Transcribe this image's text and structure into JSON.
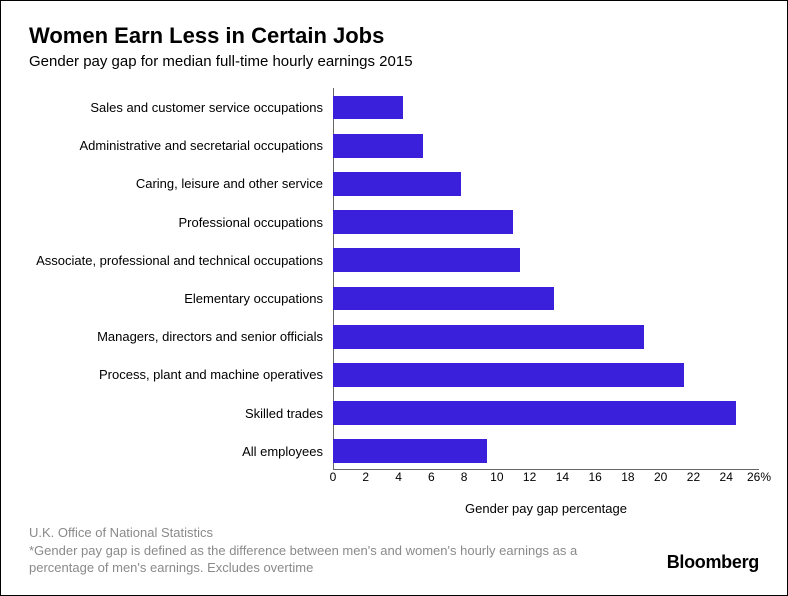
{
  "title": "Women Earn Less in Certain Jobs",
  "subtitle": "Gender pay gap for median full-time hourly earnings 2015",
  "chart": {
    "type": "bar",
    "orientation": "horizontal",
    "bar_color": "#3a1fdb",
    "background_color": "#ffffff",
    "axis_color": "#666666",
    "label_color": "#000000",
    "label_fontsize": 13,
    "tick_fontsize": 12,
    "x_title": "Gender pay gap percentage",
    "x_title_fontsize": 13,
    "xlim": [
      0,
      26
    ],
    "xtick_step": 2,
    "xtick_suffix_last": "%",
    "bar_height_ratio": 0.62,
    "categories": [
      "Sales and customer service occupations",
      "Administrative and secretarial occupations",
      "Caring, leisure and other service",
      "Professional occupations",
      "Associate, professional and technical occupations",
      "Elementary occupations",
      "Managers, directors and senior officials",
      "Process, plant and machine operatives",
      "Skilled trades",
      "All employees"
    ],
    "values": [
      4.3,
      5.5,
      7.8,
      11.0,
      11.4,
      13.5,
      19.0,
      21.4,
      24.6,
      9.4
    ]
  },
  "source_line1": "U.K. Office of National Statistics",
  "source_line2": "*Gender pay gap is defined as the difference between men's and women's hourly earnings as a percentage of men's earnings. Excludes overtime",
  "brand": "Bloomberg",
  "colors": {
    "footer_text": "#8a8a8a",
    "title_text": "#000000"
  }
}
